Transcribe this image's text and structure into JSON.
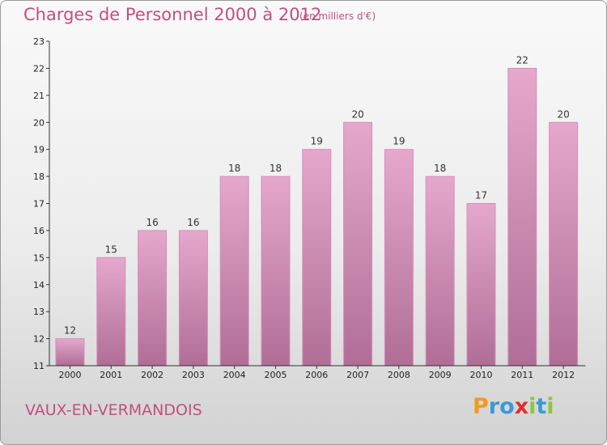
{
  "title": "Charges de Personnel 2000 à 2012",
  "unit_note": "(en milliers d'€)",
  "commune": "VAUX-EN-VERMANDOIS",
  "logo": {
    "text": "Proxiti",
    "letters": [
      {
        "ch": "P",
        "color": "#f29a1d"
      },
      {
        "ch": "r",
        "color": "#3b9ad6"
      },
      {
        "ch": "o",
        "color": "#3b9ad6"
      },
      {
        "ch": "x",
        "color": "#e2302b"
      },
      {
        "ch": "i",
        "color": "#8cc63f"
      },
      {
        "ch": "t",
        "color": "#3b9ad6"
      },
      {
        "ch": "i",
        "color": "#8cc63f"
      }
    ]
  },
  "colors": {
    "title": "#c0507e",
    "bar_top": "#e5a8cc",
    "bar_bottom": "#b06e96",
    "bar_edge": "#d48fb8"
  },
  "chart_data": {
    "type": "bar",
    "categories": [
      "2000",
      "2001",
      "2002",
      "2003",
      "2004",
      "2005",
      "2006",
      "2007",
      "2008",
      "2009",
      "2010",
      "2011",
      "2012"
    ],
    "values": [
      12,
      15,
      16,
      16,
      18,
      18,
      19,
      20,
      19,
      18,
      17,
      22,
      20
    ],
    "ylim": [
      11,
      23
    ],
    "yticks": [
      11,
      12,
      13,
      14,
      15,
      16,
      17,
      18,
      19,
      20,
      21,
      22,
      23
    ],
    "grid": false,
    "data_labels": true
  }
}
